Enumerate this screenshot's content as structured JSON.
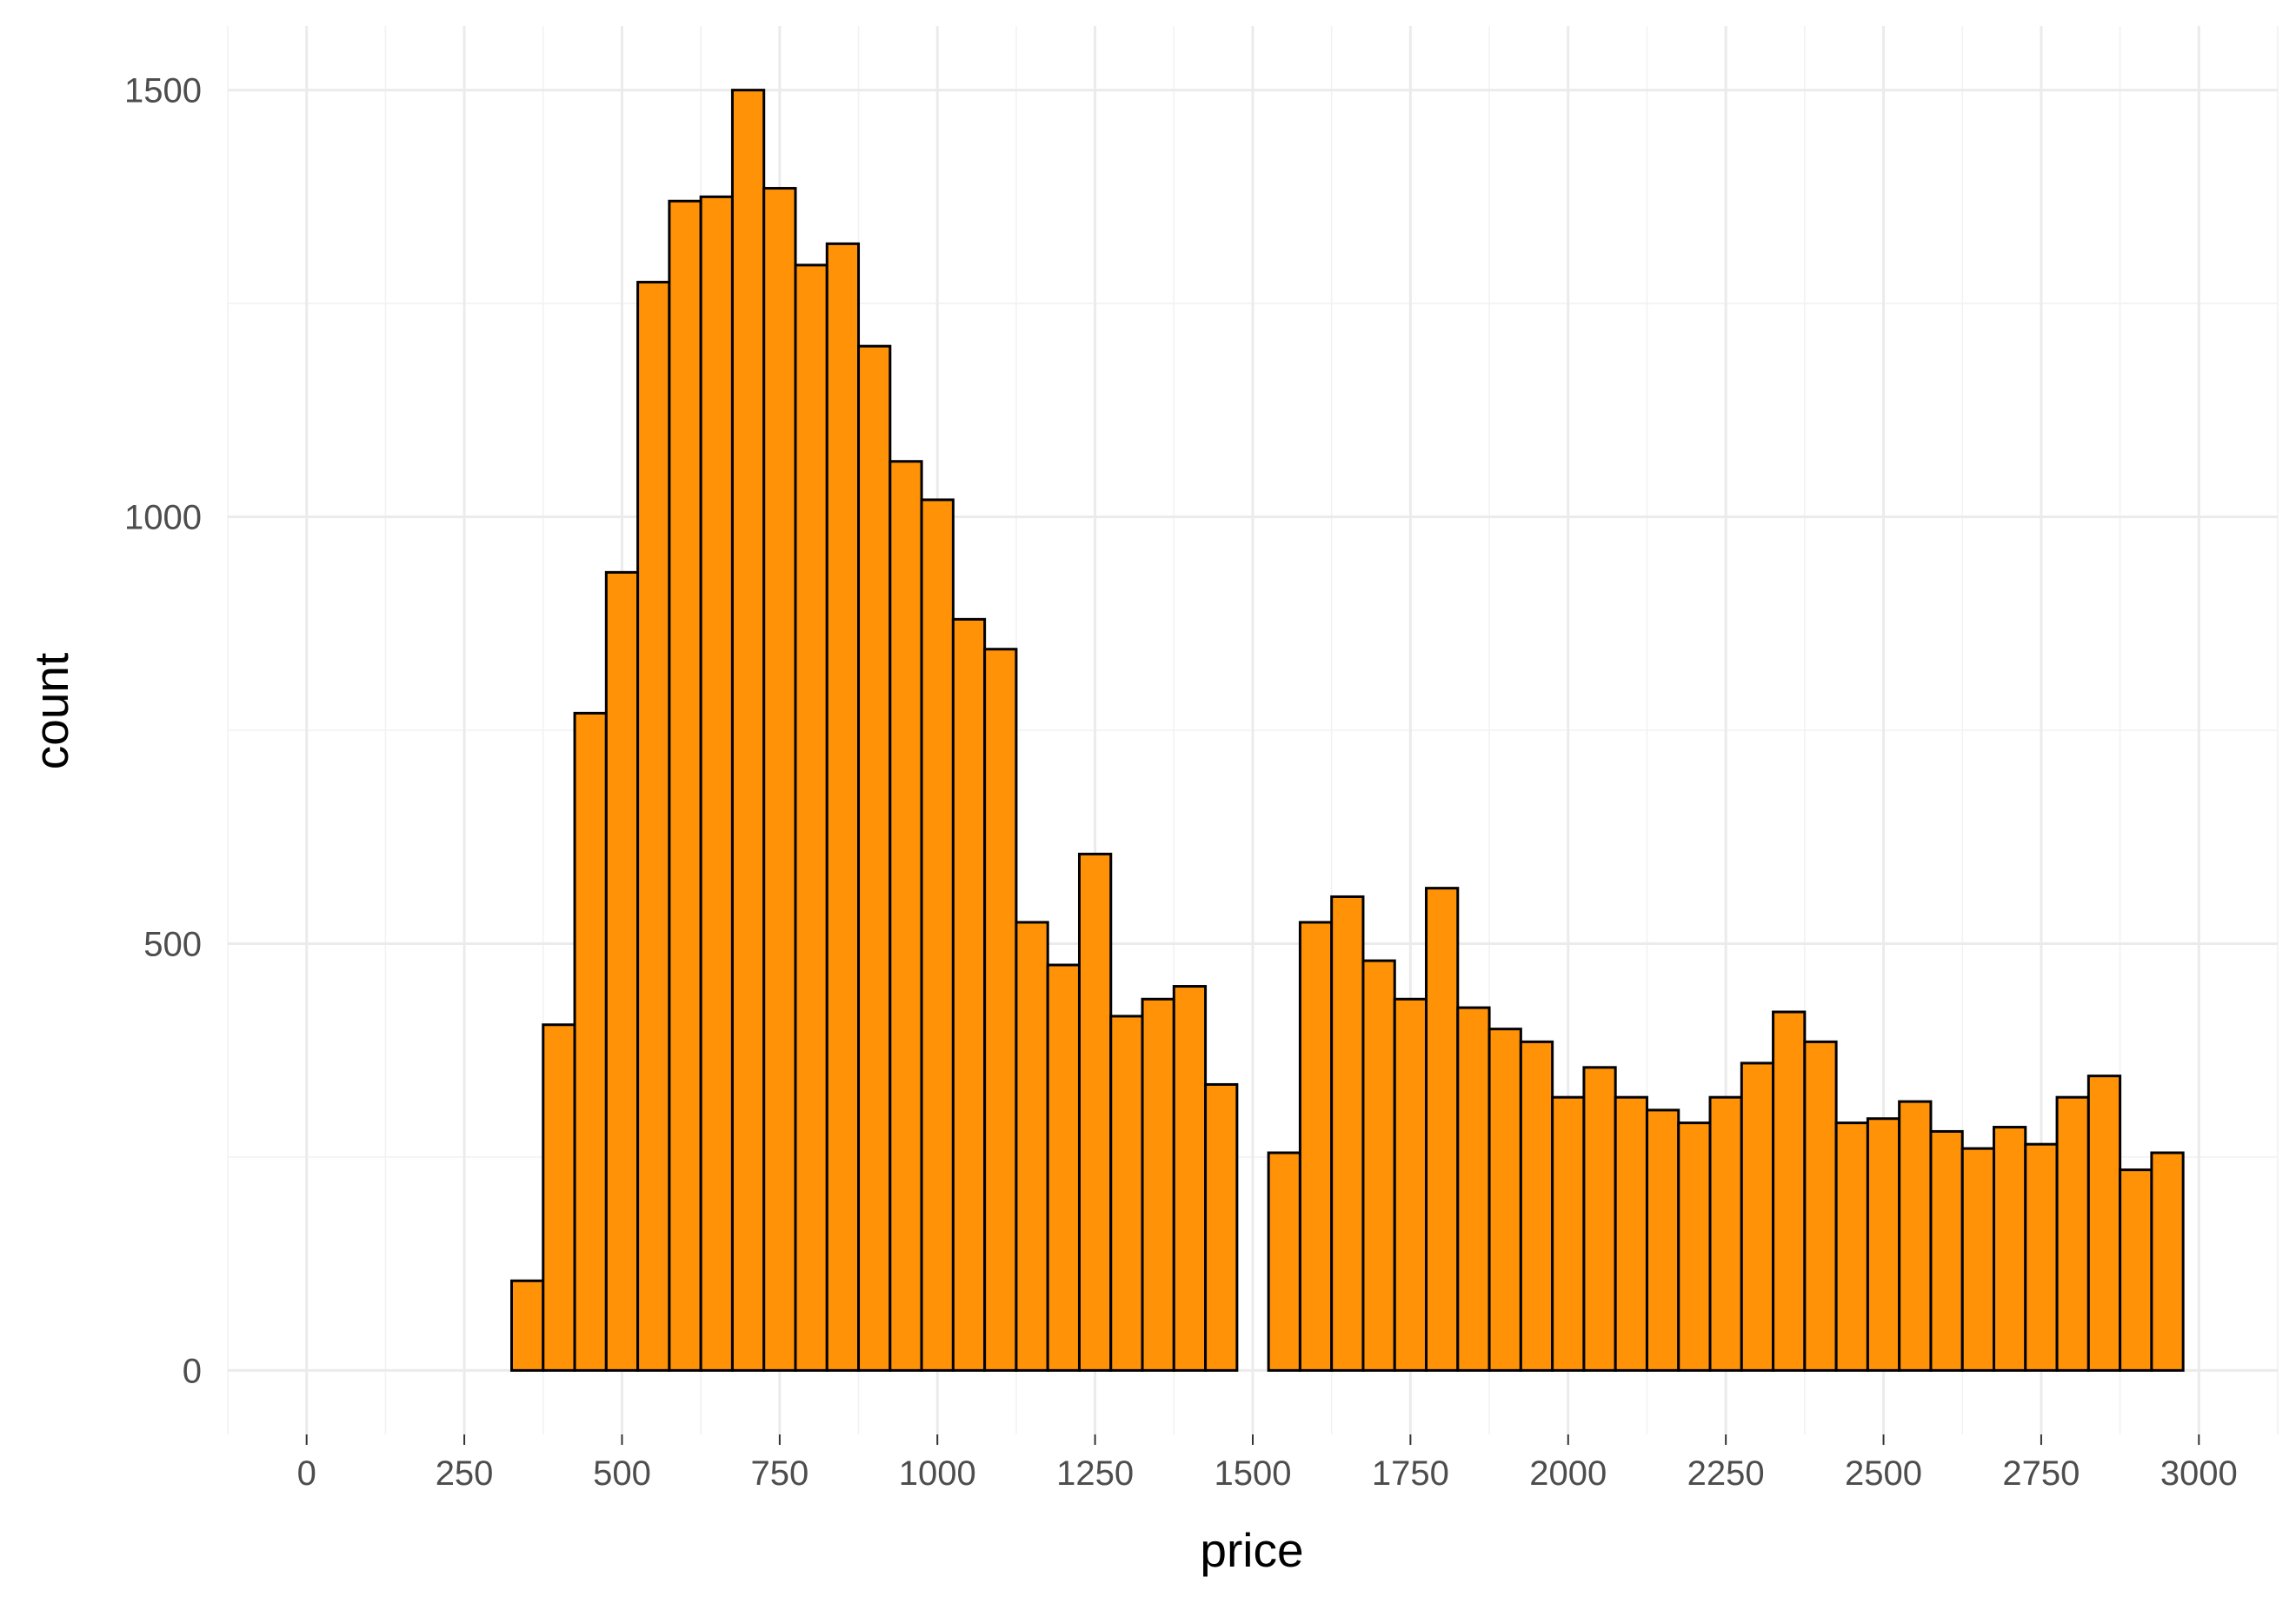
{
  "chart_data": {
    "type": "bar",
    "subtype": "histogram",
    "xlabel": "price",
    "ylabel": "count",
    "binwidth": 50,
    "x": [
      50,
      100,
      150,
      200,
      250,
      300,
      350,
      400,
      450,
      500,
      550,
      600,
      650,
      700,
      750,
      800,
      850,
      900,
      950,
      1000,
      1050,
      1100,
      1150,
      1200,
      1250,
      1300,
      1350,
      1400,
      1450,
      1500,
      1550,
      1600,
      1650,
      1700,
      1750,
      1800,
      1850,
      1900,
      1950,
      2000,
      2050,
      2100,
      2150,
      2200,
      2250,
      2300,
      2350,
      2400,
      2450,
      2500,
      2550,
      2600,
      2650,
      2700,
      2750,
      2800,
      2850,
      2900,
      2950
    ],
    "values": [
      0,
      0,
      0,
      0,
      0,
      0,
      105,
      405,
      770,
      935,
      1275,
      1370,
      1375,
      1500,
      1385,
      1295,
      1320,
      1200,
      1065,
      1020,
      880,
      845,
      525,
      475,
      605,
      415,
      435,
      450,
      335,
      0,
      255,
      525,
      555,
      480,
      435,
      565,
      425,
      400,
      385,
      320,
      355,
      320,
      305,
      290,
      320,
      360,
      420,
      385,
      290,
      295,
      315,
      280,
      260,
      285,
      265,
      320,
      345,
      235,
      255
    ],
    "xlim": [
      -125,
      3125
    ],
    "ylim": [
      -75,
      1575
    ],
    "x_ticks": [
      0,
      250,
      500,
      750,
      1000,
      1250,
      1500,
      1750,
      2000,
      2250,
      2500,
      2750,
      3000
    ],
    "x_tick_labels": [
      "0",
      "250",
      "500",
      "750",
      "1000",
      "1250",
      "1500",
      "1750",
      "2000",
      "2250",
      "2500",
      "2750",
      "3000"
    ],
    "y_ticks": [
      0,
      500,
      1000,
      1500
    ],
    "y_tick_labels": [
      "0",
      "500",
      "1000",
      "1500"
    ],
    "grid": true,
    "colors": {
      "bar_fill": "#FF9207",
      "bar_stroke": "#000000",
      "grid_major": "#EBEBEB",
      "grid_minor": "#F2F2F2",
      "tick_text": "#4D4D4D"
    }
  }
}
